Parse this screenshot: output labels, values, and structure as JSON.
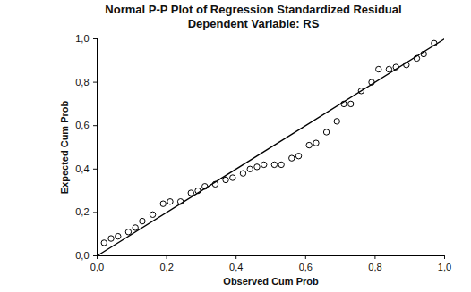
{
  "chart_data": {
    "type": "scatter",
    "title": "Normal P-P Plot of Regression Standardized Residual",
    "subtitle": "Dependent Variable: RS",
    "x_label": "Observed Cum Prob",
    "y_label": "Expected Cum Prob",
    "xlim": [
      0,
      1
    ],
    "ylim": [
      0,
      1
    ],
    "xticks": [
      {
        "value": 0,
        "label": "0,0"
      },
      {
        "value": 0.2,
        "label": "0,2"
      },
      {
        "value": 0.4,
        "label": "0,4"
      },
      {
        "value": 0.6,
        "label": "0,6"
      },
      {
        "value": 0.8,
        "label": "0,8"
      },
      {
        "value": 1,
        "label": "1,0"
      }
    ],
    "yticks": [
      {
        "value": 0,
        "label": "0,0"
      },
      {
        "value": 0.2,
        "label": "0,2"
      },
      {
        "value": 0.4,
        "label": "0,4"
      },
      {
        "value": 0.6,
        "label": "0,6"
      },
      {
        "value": 0.8,
        "label": "0,8"
      },
      {
        "value": 1,
        "label": "1,0"
      }
    ],
    "grid": false,
    "series": [
      {
        "type": "scatter",
        "marker": "circle",
        "color": "#000000",
        "x": [
          0.02,
          0.04,
          0.06,
          0.09,
          0.11,
          0.13,
          0.16,
          0.19,
          0.21,
          0.24,
          0.27,
          0.29,
          0.31,
          0.34,
          0.37,
          0.39,
          0.42,
          0.44,
          0.46,
          0.48,
          0.51,
          0.53,
          0.56,
          0.58,
          0.61,
          0.63,
          0.66,
          0.69,
          0.71,
          0.73,
          0.76,
          0.79,
          0.81,
          0.84,
          0.86,
          0.89,
          0.92,
          0.94,
          0.97
        ],
        "values": [
          0.06,
          0.08,
          0.09,
          0.11,
          0.13,
          0.16,
          0.19,
          0.24,
          0.25,
          0.25,
          0.29,
          0.3,
          0.32,
          0.33,
          0.35,
          0.36,
          0.38,
          0.4,
          0.41,
          0.42,
          0.42,
          0.42,
          0.45,
          0.46,
          0.51,
          0.52,
          0.57,
          0.62,
          0.7,
          0.7,
          0.76,
          0.8,
          0.86,
          0.86,
          0.87,
          0.88,
          0.91,
          0.93,
          0.98
        ]
      },
      {
        "type": "line",
        "line_style": "solid",
        "color": "#000000",
        "x": [
          0,
          1
        ],
        "values": [
          0,
          1
        ]
      }
    ]
  }
}
